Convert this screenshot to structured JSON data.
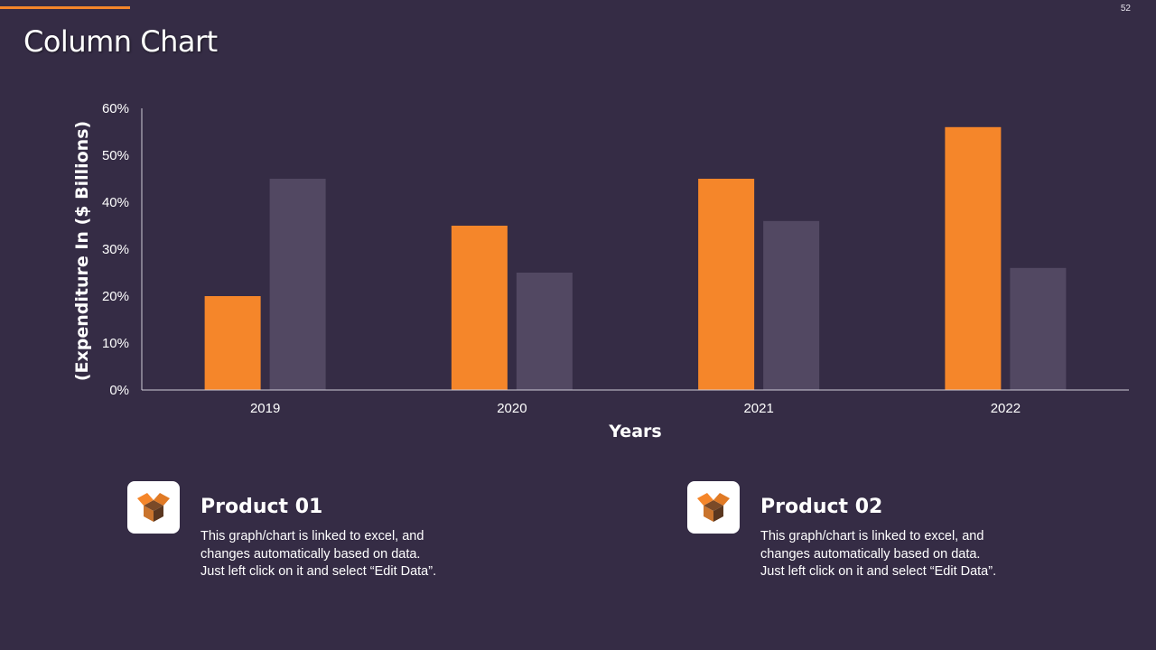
{
  "slide": {
    "title": "Column Chart",
    "page_number": "52"
  },
  "colors": {
    "background": "#352c45",
    "product_01": "#f5862a",
    "product_02": "#524862",
    "accent": "#f5862a"
  },
  "chart_data": {
    "type": "bar",
    "categories": [
      "2019",
      "2020",
      "2021",
      "2022"
    ],
    "series": [
      {
        "name": "Product 01",
        "values": [
          20,
          35,
          45,
          56
        ]
      },
      {
        "name": "Product 02",
        "values": [
          45,
          25,
          36,
          26
        ]
      }
    ],
    "title": "",
    "xlabel": "Years",
    "ylabel": "(Expenditure In ($ Billions)",
    "ylim": [
      0,
      60
    ],
    "yticks": [
      0,
      10,
      20,
      30,
      40,
      50,
      60
    ],
    "ytick_labels": [
      "0%",
      "10%",
      "20%",
      "30%",
      "40%",
      "50%",
      "60%"
    ],
    "grid": false
  },
  "cards": [
    {
      "title": "Product 01",
      "icon": "box-icon",
      "text_lines": [
        "This graph/chart is linked to excel, and",
        "changes automatically based on data.",
        "Just left click on it and select “Edit Data”."
      ]
    },
    {
      "title": "Product 02",
      "icon": "box-icon",
      "text_lines": [
        "This graph/chart is linked to excel, and",
        "changes automatically based on data.",
        "Just left click on it and select “Edit Data”."
      ]
    }
  ]
}
